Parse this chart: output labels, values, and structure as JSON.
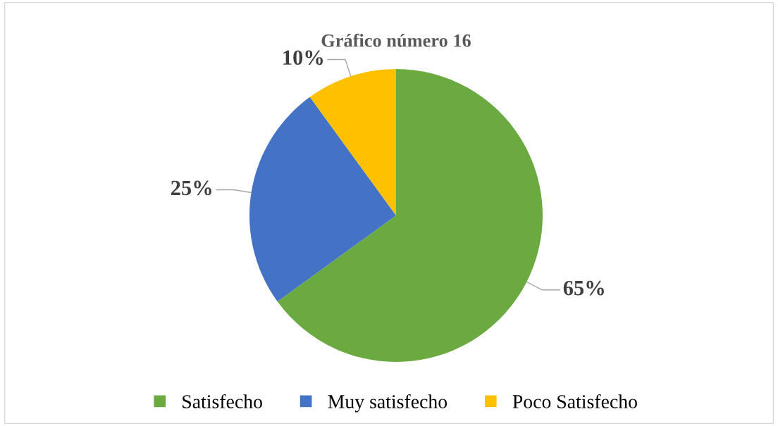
{
  "chart_data": {
    "type": "pie",
    "title": "Gráfico número 16",
    "categories": [
      "Satisfecho",
      "Muy satisfecho",
      "Poco Satisfecho"
    ],
    "values": [
      65,
      25,
      10
    ],
    "colors": [
      "#6aaa40",
      "#4472c4",
      "#ffc000"
    ],
    "value_labels": [
      "65%",
      "25%",
      "10%"
    ],
    "legend": "bottom"
  }
}
